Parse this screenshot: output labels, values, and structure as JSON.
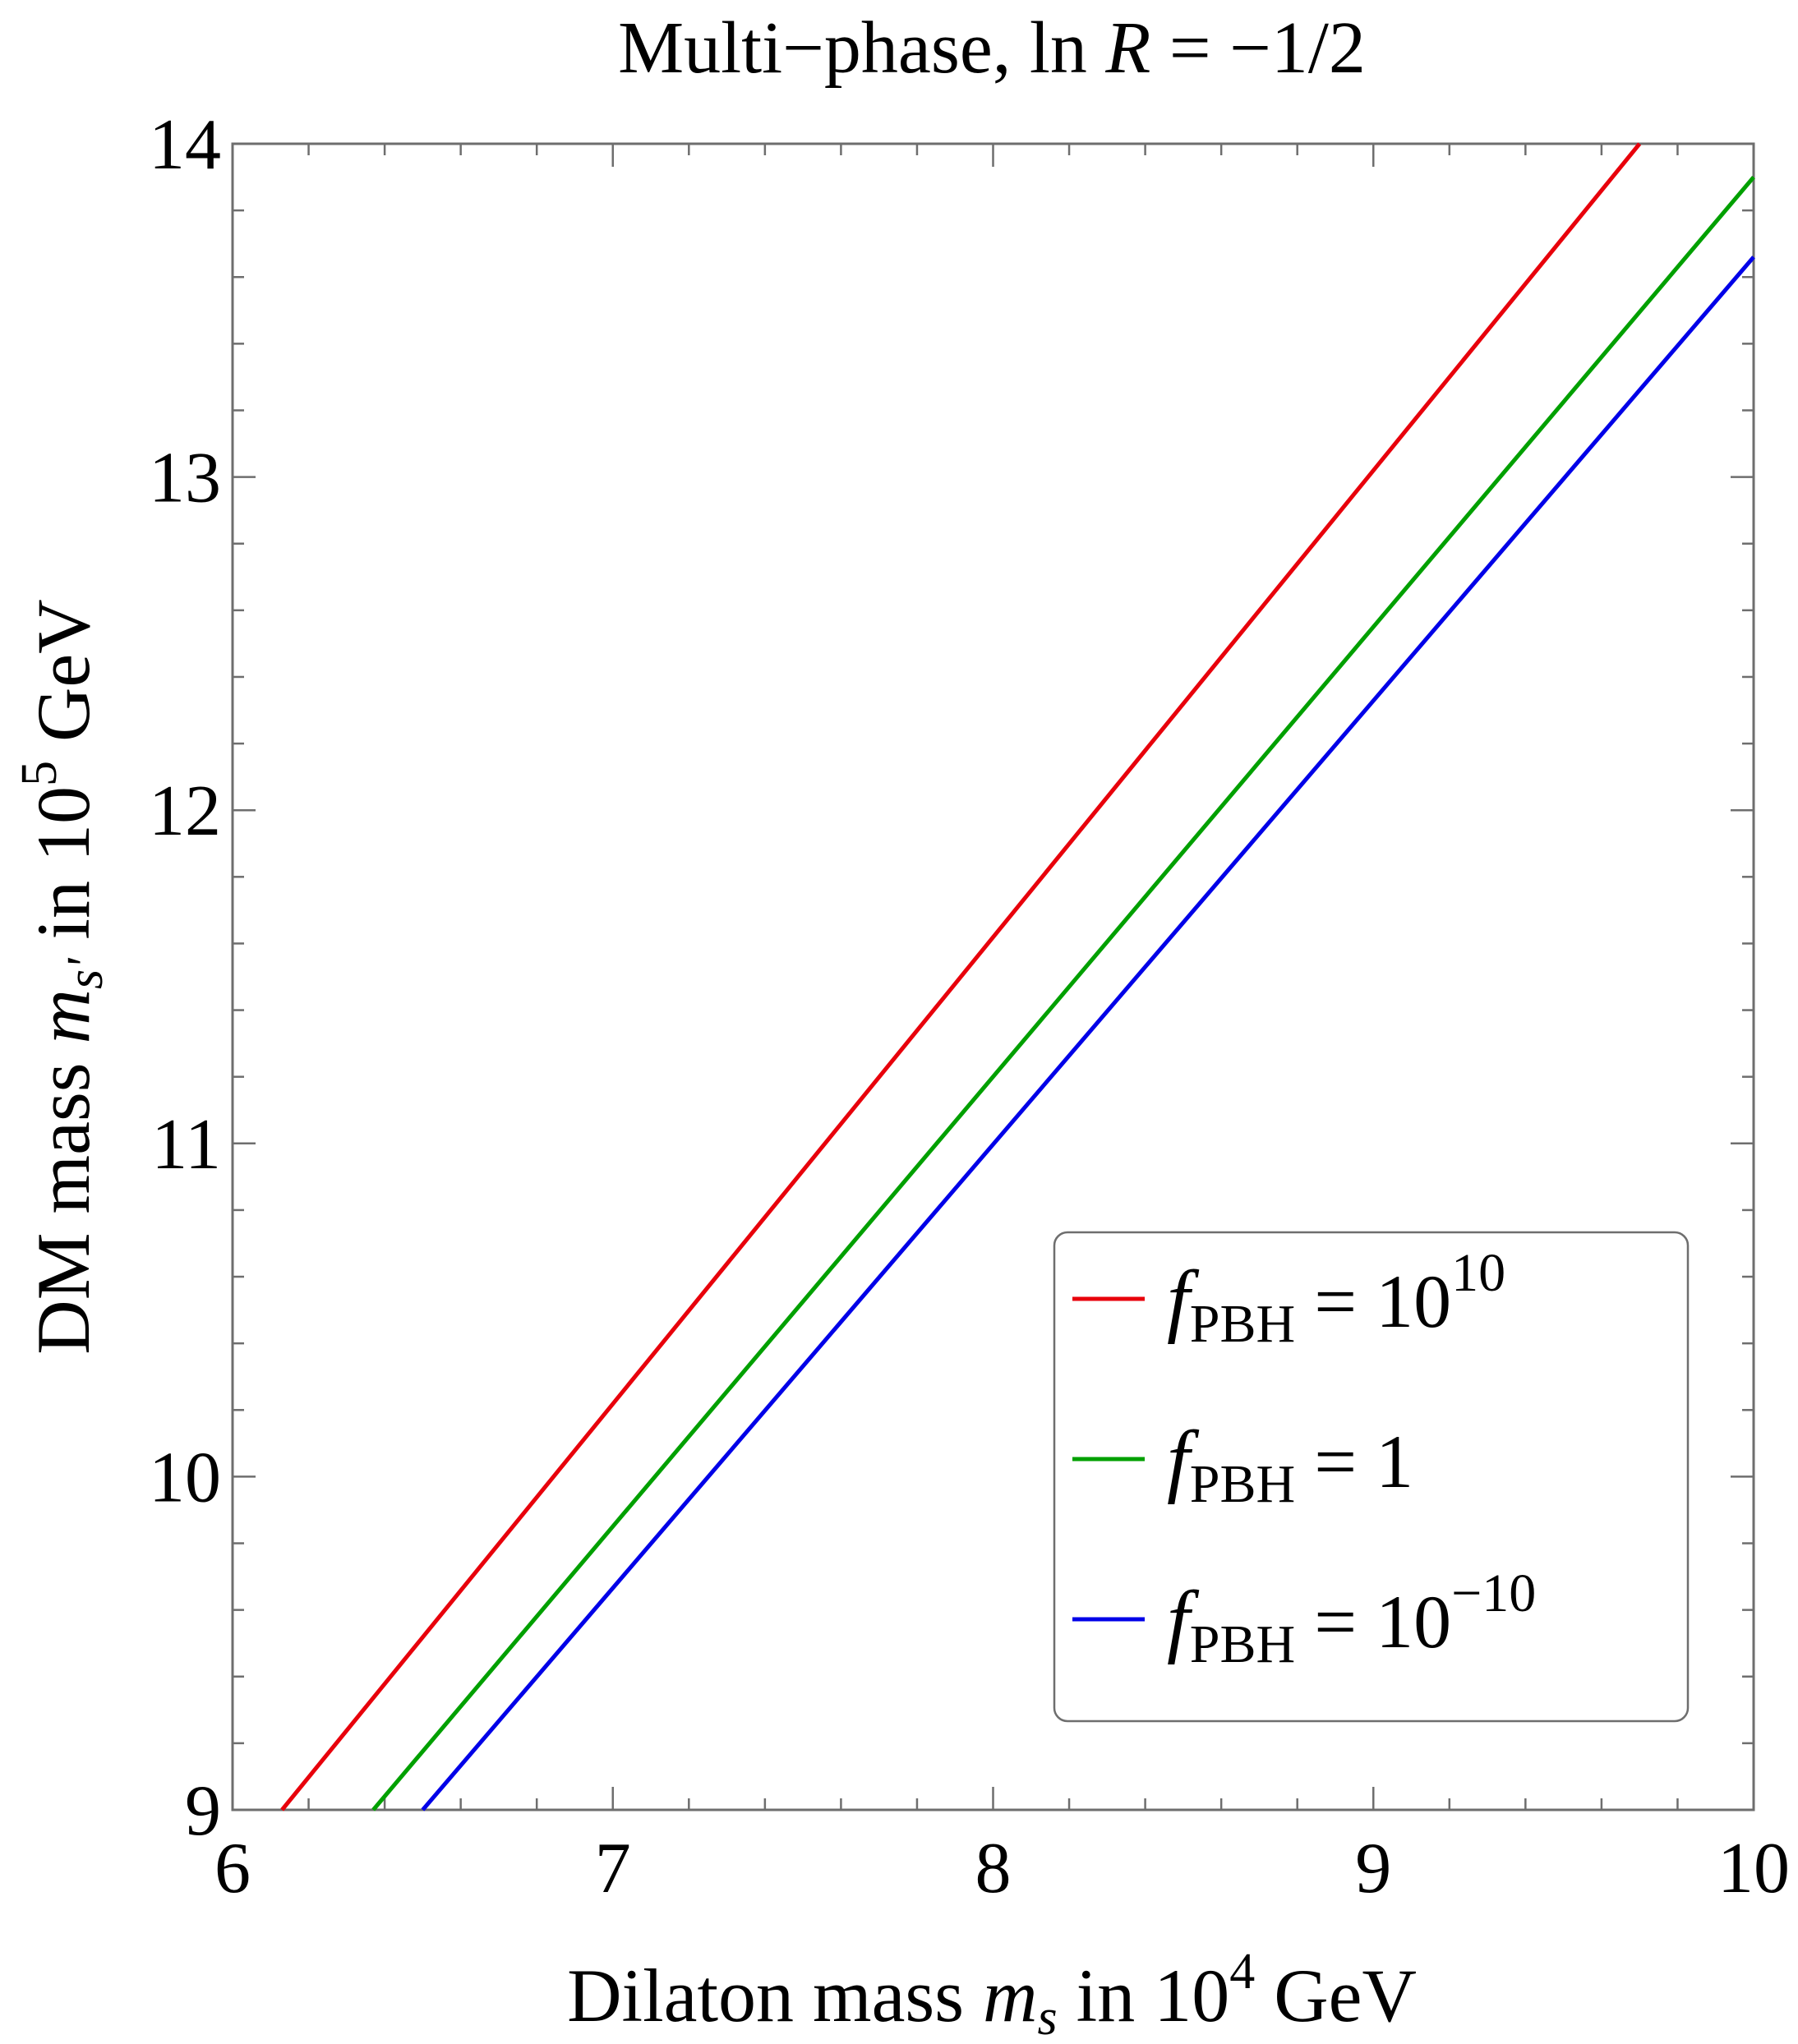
{
  "chart_data": {
    "type": "line",
    "title": {
      "prefix": "Multi−phase, ln ",
      "var": "R",
      "suffix": " = −1/2"
    },
    "xlabel": {
      "prefix": "Dilaton mass ",
      "var": "m",
      "sub": "s",
      "middle": " in 10",
      "sup": "4",
      "suffix": " GeV"
    },
    "ylabel": {
      "prefix": "DM mass ",
      "var": "m",
      "sub": "s'",
      "middle": " in 10",
      "sup": "5",
      "suffix": " GeV"
    },
    "xlim": [
      6,
      10
    ],
    "ylim": [
      9,
      14
    ],
    "x_ticks": [
      "6",
      "7",
      "8",
      "9",
      "10"
    ],
    "y_ticks": [
      "9",
      "10",
      "11",
      "12",
      "13",
      "14"
    ],
    "grid": false,
    "legend_position": "lower-right",
    "series": [
      {
        "name": {
          "var": "f",
          "sub": "PBH",
          "rel": " = 10",
          "sup": "10"
        },
        "color": "#e8000b",
        "x": [
          6.13,
          9.7
        ],
        "y": [
          9.0,
          14.0
        ]
      },
      {
        "name": {
          "var": "f",
          "sub": "PBH",
          "rel": " = 1",
          "sup": ""
        },
        "color": "#00a000",
        "x": [
          6.37,
          10.0
        ],
        "y": [
          9.0,
          13.9
        ]
      },
      {
        "name": {
          "var": "f",
          "sub": "PBH",
          "rel": " = 10",
          "sup": "−10"
        },
        "color": "#0000e8",
        "x": [
          6.5,
          10.0
        ],
        "y": [
          9.0,
          13.66
        ]
      }
    ]
  }
}
